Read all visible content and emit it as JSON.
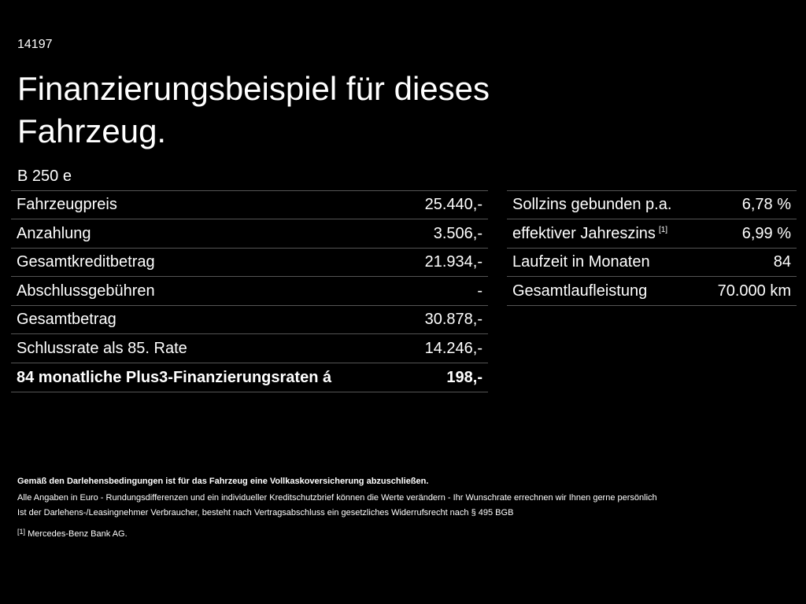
{
  "header": {
    "code": "14197",
    "title_lines": [
      "Finanzierungsbeispiel für dieses",
      "Fahrzeug."
    ],
    "model": "B 250 e"
  },
  "left_table": {
    "rows": [
      [
        "Fahrzeugpreis",
        "25.440,-"
      ],
      [
        "Anzahlung",
        "3.506,-"
      ],
      [
        "Gesamtkreditbetrag",
        "21.934,-"
      ],
      [
        "Abschlussgebühren",
        "-"
      ],
      [
        "Gesamtbetrag",
        "30.878,-"
      ],
      [
        "Schlussrate als 85. Rate",
        "14.246,-"
      ],
      [
        "84 monatliche Plus3-Finanzierungsraten á",
        "198,-"
      ]
    ]
  },
  "right_table": {
    "rows": [
      [
        "Sollzins gebunden p.a.",
        "6,78 %"
      ],
      [
        "effektiver Jahreszins",
        "6,99 %",
        "[1]"
      ],
      [
        "Laufzeit in Monaten",
        "84"
      ],
      [
        "Gesamtlaufleistung",
        "70.000 km"
      ]
    ]
  },
  "footer": {
    "bold_note": "Gemäß den Darlehensbedingungen ist für das Fahrzeug eine Vollkaskoversicherung abzuschließen.",
    "notes": [
      "Alle Angaben in Euro - Rundungsdifferenzen und ein individueller Kreditschutzbrief können die Werte verändern - Ihr Wunschrate errechnen wir Ihnen gerne persönlich",
      "Ist der Darlehens-/Leasingnehmer Verbraucher, besteht nach Vertragsabschluss ein gesetzliches Widerrufsrecht nach § 495 BGB"
    ],
    "footnote_mark": "[1]",
    "footnote_text": "Mercedes-Benz Bank AG."
  }
}
